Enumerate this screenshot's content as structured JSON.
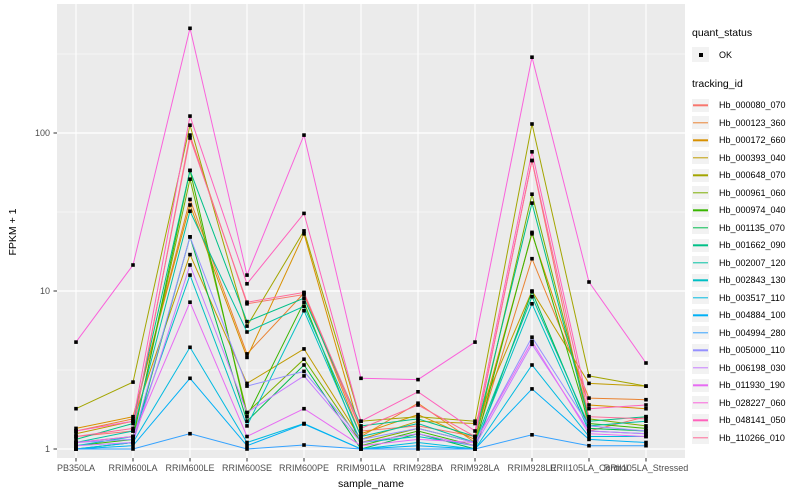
{
  "chart_data": {
    "type": "line",
    "title": "",
    "xlabel": "sample_name",
    "ylabel": "FPKM + 1",
    "yscale": "log10",
    "yticks": [
      1,
      10,
      100
    ],
    "ylim": [
      0.88,
      640
    ],
    "grid": true,
    "legend_position": "right",
    "point_color": "#000000",
    "point_shape": "square",
    "categories": [
      "PB350LA",
      "RRIM600LA",
      "RRIM600LE",
      "RRIM600SE",
      "RRIM600PE",
      "RRIM901LA",
      "RRIM928BA",
      "RRIM928LA",
      "RRIM928LE",
      "RRII105LA_Control",
      "RRII105LA_Stressed"
    ],
    "series": [
      {
        "name": "Hb_000080_070",
        "color": "#F8766D",
        "values": [
          1.2,
          1.3,
          97,
          8.3,
          9.5,
          1.3,
          1.4,
          1.2,
          67,
          1.3,
          1.6
        ]
      },
      {
        "name": "Hb_000123_360",
        "color": "#EA8331",
        "values": [
          1.3,
          1.55,
          38,
          4.0,
          9.7,
          1.2,
          1.95,
          1.1,
          16,
          2.1,
          2.05
        ]
      },
      {
        "name": "Hb_000172_660",
        "color": "#D89000",
        "values": [
          1.35,
          1.6,
          35,
          3.8,
          23,
          1.25,
          1.65,
          1.15,
          23,
          1.9,
          1.8
        ]
      },
      {
        "name": "Hb_000393_040",
        "color": "#C09B00",
        "values": [
          1.25,
          1.5,
          17,
          2.6,
          4.3,
          1.15,
          1.5,
          1.45,
          10,
          2.6,
          2.5
        ]
      },
      {
        "name": "Hb_000648_070",
        "color": "#A3A500",
        "values": [
          1.8,
          2.65,
          112,
          6.0,
          24,
          1.5,
          1.6,
          1.5,
          114,
          2.9,
          2.5
        ]
      },
      {
        "name": "Hb_000961_060",
        "color": "#7CAE00",
        "values": [
          1.1,
          1.2,
          51,
          1.7,
          3.7,
          1.1,
          1.35,
          1.1,
          41,
          1.55,
          1.4
        ]
      },
      {
        "name": "Hb_000974_040",
        "color": "#39B600",
        "values": [
          1.05,
          1.15,
          58,
          1.6,
          8.5,
          1.05,
          1.3,
          1.05,
          23.5,
          1.45,
          1.35
        ]
      },
      {
        "name": "Hb_001135_070",
        "color": "#00BB4E",
        "values": [
          1.0,
          1.1,
          22,
          1.5,
          3.4,
          1.0,
          1.25,
          1.0,
          9.9,
          1.35,
          1.3
        ]
      },
      {
        "name": "Hb_001662_090",
        "color": "#00C087",
        "values": [
          1.15,
          1.45,
          58,
          6.4,
          9.0,
          1.4,
          1.55,
          1.2,
          36,
          1.5,
          1.6
        ]
      },
      {
        "name": "Hb_002007_120",
        "color": "#00C1A3",
        "values": [
          1.1,
          1.3,
          32,
          5.5,
          8.0,
          1.2,
          1.45,
          1.1,
          9.2,
          1.4,
          1.5
        ]
      },
      {
        "name": "Hb_002843_130",
        "color": "#00BFC4",
        "values": [
          1.05,
          1.2,
          12.6,
          1.4,
          7.5,
          1.1,
          1.2,
          1.05,
          8.3,
          1.3,
          1.25
        ]
      },
      {
        "name": "Hb_003517_110",
        "color": "#00BAE0",
        "values": [
          1.0,
          1.1,
          4.4,
          1.1,
          1.45,
          1.0,
          1.1,
          1.0,
          3.4,
          1.2,
          1.2
        ]
      },
      {
        "name": "Hb_004884_100",
        "color": "#00B0F6",
        "values": [
          1.0,
          1.05,
          2.8,
          1.05,
          1.44,
          1.0,
          1.05,
          1.0,
          2.4,
          1.15,
          1.1
        ]
      },
      {
        "name": "Hb_004994_280",
        "color": "#35A2FF",
        "values": [
          1.0,
          1.0,
          1.25,
          1.0,
          1.06,
          1.0,
          1.0,
          1.0,
          1.23,
          1.05,
          1.05
        ]
      },
      {
        "name": "Hb_005000_110",
        "color": "#9590FF",
        "values": [
          1.1,
          1.15,
          22,
          2.5,
          3.1,
          1.15,
          1.35,
          1.1,
          5.1,
          1.4,
          1.3
        ]
      },
      {
        "name": "Hb_006198_030",
        "color": "#C77CFF",
        "values": [
          1.05,
          1.1,
          14.6,
          1.7,
          2.9,
          1.1,
          1.25,
          1.05,
          4.6,
          1.3,
          1.25
        ]
      },
      {
        "name": "Hb_011930_190",
        "color": "#E76BF3",
        "values": [
          1.1,
          1.2,
          8.5,
          1.2,
          1.8,
          1.05,
          1.15,
          1.1,
          4.8,
          1.25,
          1.2
        ]
      },
      {
        "name": "Hb_028227_060",
        "color": "#FA62DB",
        "values": [
          4.75,
          14.6,
          460,
          12.6,
          97,
          2.8,
          2.75,
          4.75,
          302,
          11.4,
          3.5
        ]
      },
      {
        "name": "Hb_048141_050",
        "color": "#FF62BC",
        "values": [
          1.3,
          1.5,
          128,
          11.1,
          31,
          1.5,
          2.3,
          1.3,
          76,
          1.8,
          1.9
        ]
      },
      {
        "name": "Hb_110266_010",
        "color": "#FF6A98",
        "values": [
          1.2,
          1.35,
          93,
          8.5,
          9.8,
          1.35,
          1.9,
          1.2,
          67,
          1.6,
          1.55
        ]
      }
    ]
  },
  "legend": {
    "quant_title": "quant_status",
    "quant_items": [
      {
        "label": "OK",
        "marker": "black-square-point"
      }
    ],
    "tracking_title": "tracking_id"
  },
  "colors": {
    "panel_background": "#EBEBEB",
    "gridline": "#FFFFFF",
    "axis_text": "#4D4D4D",
    "tick_mark": "#333333",
    "legend_key_background": "#F2F2F2"
  }
}
